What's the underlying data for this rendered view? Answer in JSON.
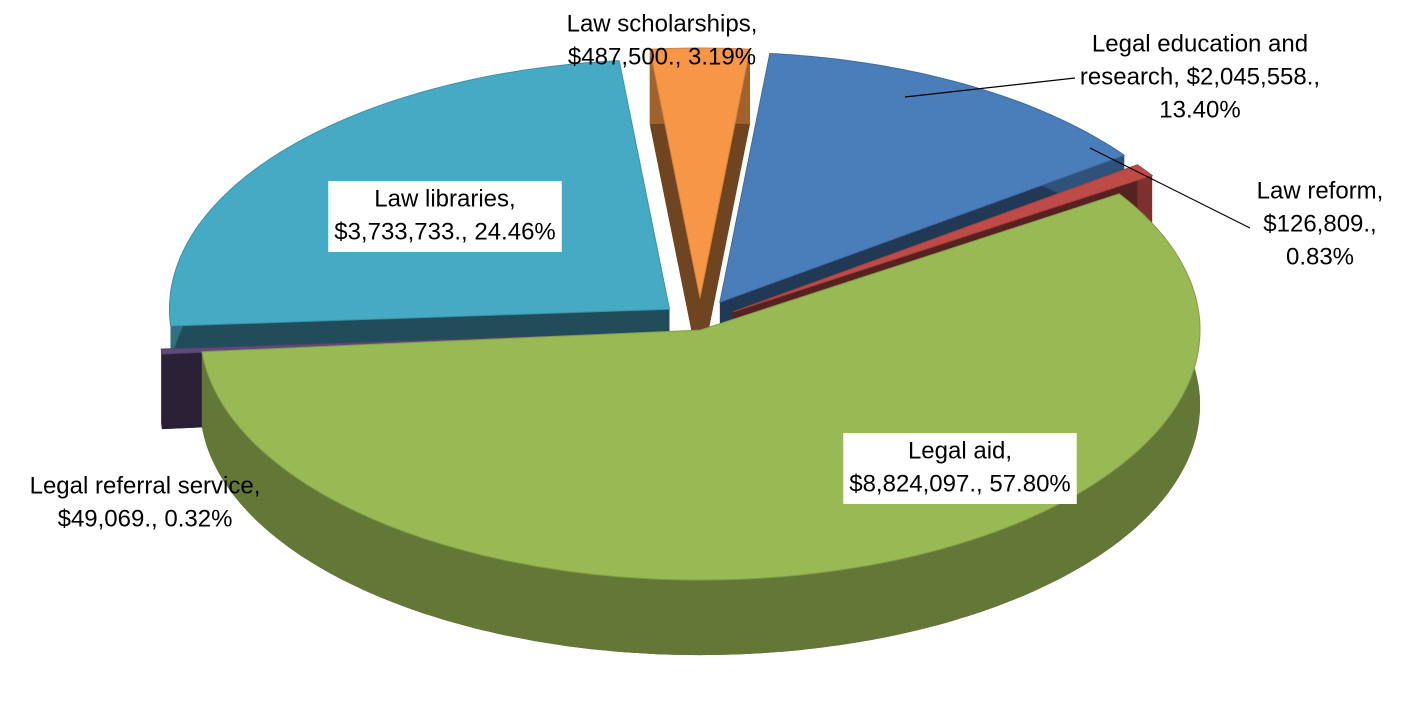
{
  "chart_data": {
    "type": "pie3d",
    "labels": [
      [
        "Legal education and",
        "research, $2,045,558.,",
        "13.40%"
      ],
      [
        "Law reform,",
        "$126,809.,",
        "0.83%"
      ],
      [
        "Legal aid,",
        "$8,824,097., 57.80%"
      ],
      [
        "Legal referral service,",
        "$49,069., 0.32%"
      ],
      [
        "Law libraries,",
        "$3,733,733., 24.46%"
      ],
      [
        "Law scholarships,",
        "$487,500., 3.19%"
      ]
    ],
    "values": [
      2045558,
      126809,
      8824097,
      49069,
      3733733,
      487500
    ],
    "colors": [
      "#4a7ebb",
      "#be4b48",
      "#98b954",
      "#604a7b",
      "#46aac5",
      "#f79646"
    ]
  }
}
